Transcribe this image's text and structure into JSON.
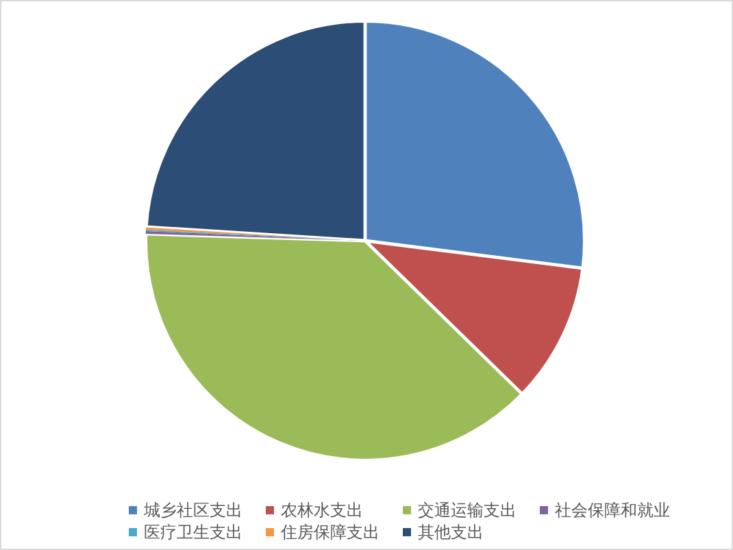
{
  "chart_data": {
    "type": "pie",
    "categories": [
      "城乡社区支出",
      "农林水支出",
      "交通运输支出",
      "社会保障和就业",
      "医疗卫生支出",
      "住房保障支出",
      "其他支出"
    ],
    "values": [
      27.0,
      10.3,
      38.2,
      0.2,
      0.1,
      0.2,
      24.0
    ],
    "colors": [
      "#4f81bd",
      "#c0504d",
      "#9bbb59",
      "#8064a2",
      "#4bacc6",
      "#f79646",
      "#2c4d75"
    ],
    "legend": "bottom"
  }
}
